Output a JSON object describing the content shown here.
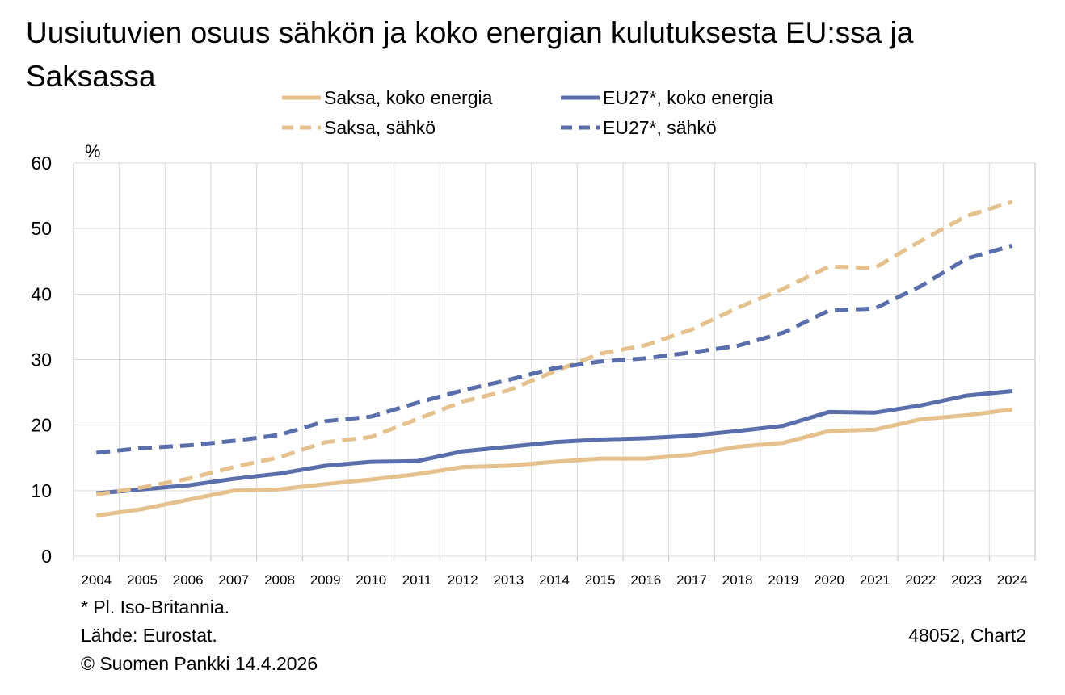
{
  "colors": {
    "saksa": "#e4c18d",
    "eu": "#5a6eac",
    "grid": "#d9d9d9",
    "axis": "#bfbfbf"
  },
  "chart_data": {
    "type": "line",
    "title": "Uusiutuvien osuus sähkön ja koko energian kulutuksesta EU:ssa ja Saksassa",
    "ylabel": "%",
    "xlabel": "",
    "ylim": [
      0,
      60
    ],
    "yticks": [
      "0",
      "10",
      "20",
      "30",
      "40",
      "50",
      "60"
    ],
    "categories": [
      "2004",
      "2005",
      "2006",
      "2007",
      "2008",
      "2009",
      "2010",
      "2011",
      "2012",
      "2013",
      "2014",
      "2015",
      "2016",
      "2017",
      "2018",
      "2019",
      "2020",
      "2021",
      "2022",
      "2023",
      "2024"
    ],
    "grid": true,
    "legend_position": "top",
    "series": [
      {
        "name": "Saksa, koko energia",
        "color_key": "saksa",
        "dashed": false,
        "values": [
          6.2,
          7.2,
          8.6,
          10.0,
          10.2,
          11.0,
          11.7,
          12.5,
          13.6,
          13.8,
          14.4,
          14.9,
          14.9,
          15.5,
          16.7,
          17.3,
          19.1,
          19.3,
          20.9,
          21.5,
          22.4
        ]
      },
      {
        "name": "EU27*, koko energia",
        "color_key": "eu",
        "dashed": false,
        "values": [
          9.6,
          10.2,
          10.8,
          11.8,
          12.6,
          13.8,
          14.4,
          14.5,
          16.0,
          16.7,
          17.4,
          17.8,
          18.0,
          18.4,
          19.1,
          19.9,
          22.0,
          21.9,
          23.0,
          24.5,
          25.2
        ]
      },
      {
        "name": "Saksa, sähkö",
        "color_key": "saksa",
        "dashed": true,
        "values": [
          9.4,
          10.5,
          11.8,
          13.6,
          15.1,
          17.4,
          18.2,
          20.9,
          23.6,
          25.3,
          28.2,
          30.9,
          32.2,
          34.6,
          37.9,
          40.8,
          44.2,
          44.0,
          48.1,
          51.9,
          54.1
        ]
      },
      {
        "name": "EU27*, sähkö",
        "color_key": "eu",
        "dashed": true,
        "values": [
          15.8,
          16.5,
          16.9,
          17.6,
          18.5,
          20.6,
          21.3,
          23.4,
          25.3,
          26.9,
          28.7,
          29.7,
          30.2,
          31.1,
          32.1,
          34.1,
          37.5,
          37.8,
          41.2,
          45.4,
          47.4
        ]
      }
    ]
  },
  "footer": {
    "note": "* Pl. Iso-Britannia.",
    "source": "Lähde: Eurostat.",
    "copyright": "© Suomen Pankki 14.4.2026",
    "chart_id": "48052, Chart2"
  }
}
